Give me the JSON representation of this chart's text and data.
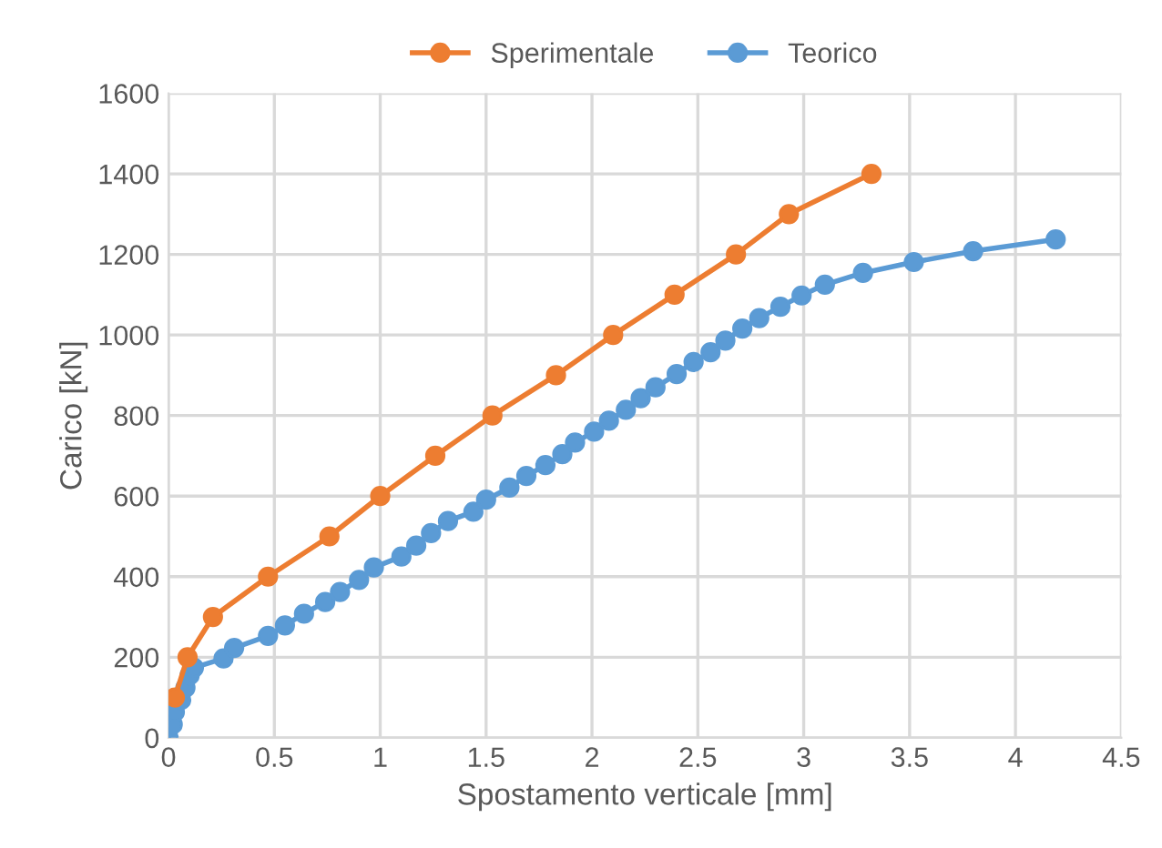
{
  "chart_data": {
    "type": "line",
    "xlabel": "Spostamento verticale [mm]",
    "ylabel": "Carico [kN]",
    "xlim": [
      0,
      4.5
    ],
    "xticks": [
      0,
      0.5,
      1,
      1.5,
      2,
      2.5,
      3,
      3.5,
      4,
      4.5
    ],
    "ylim": [
      0,
      1600
    ],
    "yticks": [
      0,
      200,
      400,
      600,
      800,
      1000,
      1200,
      1400,
      1600
    ],
    "grid": true,
    "legend": "top",
    "marker": "circle",
    "line_style": "solid",
    "series": [
      {
        "name": "Sperimentale",
        "color": "#ed7d31",
        "x": [
          0.03,
          0.09,
          0.21,
          0.47,
          0.76,
          1.0,
          1.26,
          1.53,
          1.83,
          2.1,
          2.39,
          2.68,
          2.93,
          3.32
        ],
        "values": [
          100,
          200,
          300,
          400,
          500,
          600,
          700,
          800,
          900,
          1000,
          1100,
          1200,
          1300,
          1400
        ]
      },
      {
        "name": "Teorico",
        "color": "#5b9bd5",
        "x": [
          0,
          0.02,
          0.03,
          0.06,
          0.08,
          0.1,
          0.12,
          0.26,
          0.31,
          0.47,
          0.55,
          0.64,
          0.74,
          0.81,
          0.9,
          0.97,
          1.1,
          1.17,
          1.24,
          1.32,
          1.44,
          1.5,
          1.61,
          1.69,
          1.78,
          1.86,
          1.92,
          2.01,
          2.08,
          2.16,
          2.23,
          2.3,
          2.4,
          2.48,
          2.56,
          2.63,
          2.71,
          2.79,
          2.89,
          2.99,
          3.1,
          3.28,
          3.52,
          3.8,
          4.19
        ],
        "values": [
          0,
          33,
          64,
          94,
          124,
          155,
          174,
          197,
          223,
          253,
          279,
          308,
          337,
          362,
          392,
          423,
          450,
          477,
          508,
          538,
          561,
          591,
          621,
          650,
          677,
          704,
          733,
          760,
          787,
          814,
          843,
          870,
          903,
          933,
          957,
          986,
          1016,
          1042,
          1070,
          1098,
          1125,
          1154,
          1181,
          1208,
          1237
        ]
      }
    ]
  }
}
